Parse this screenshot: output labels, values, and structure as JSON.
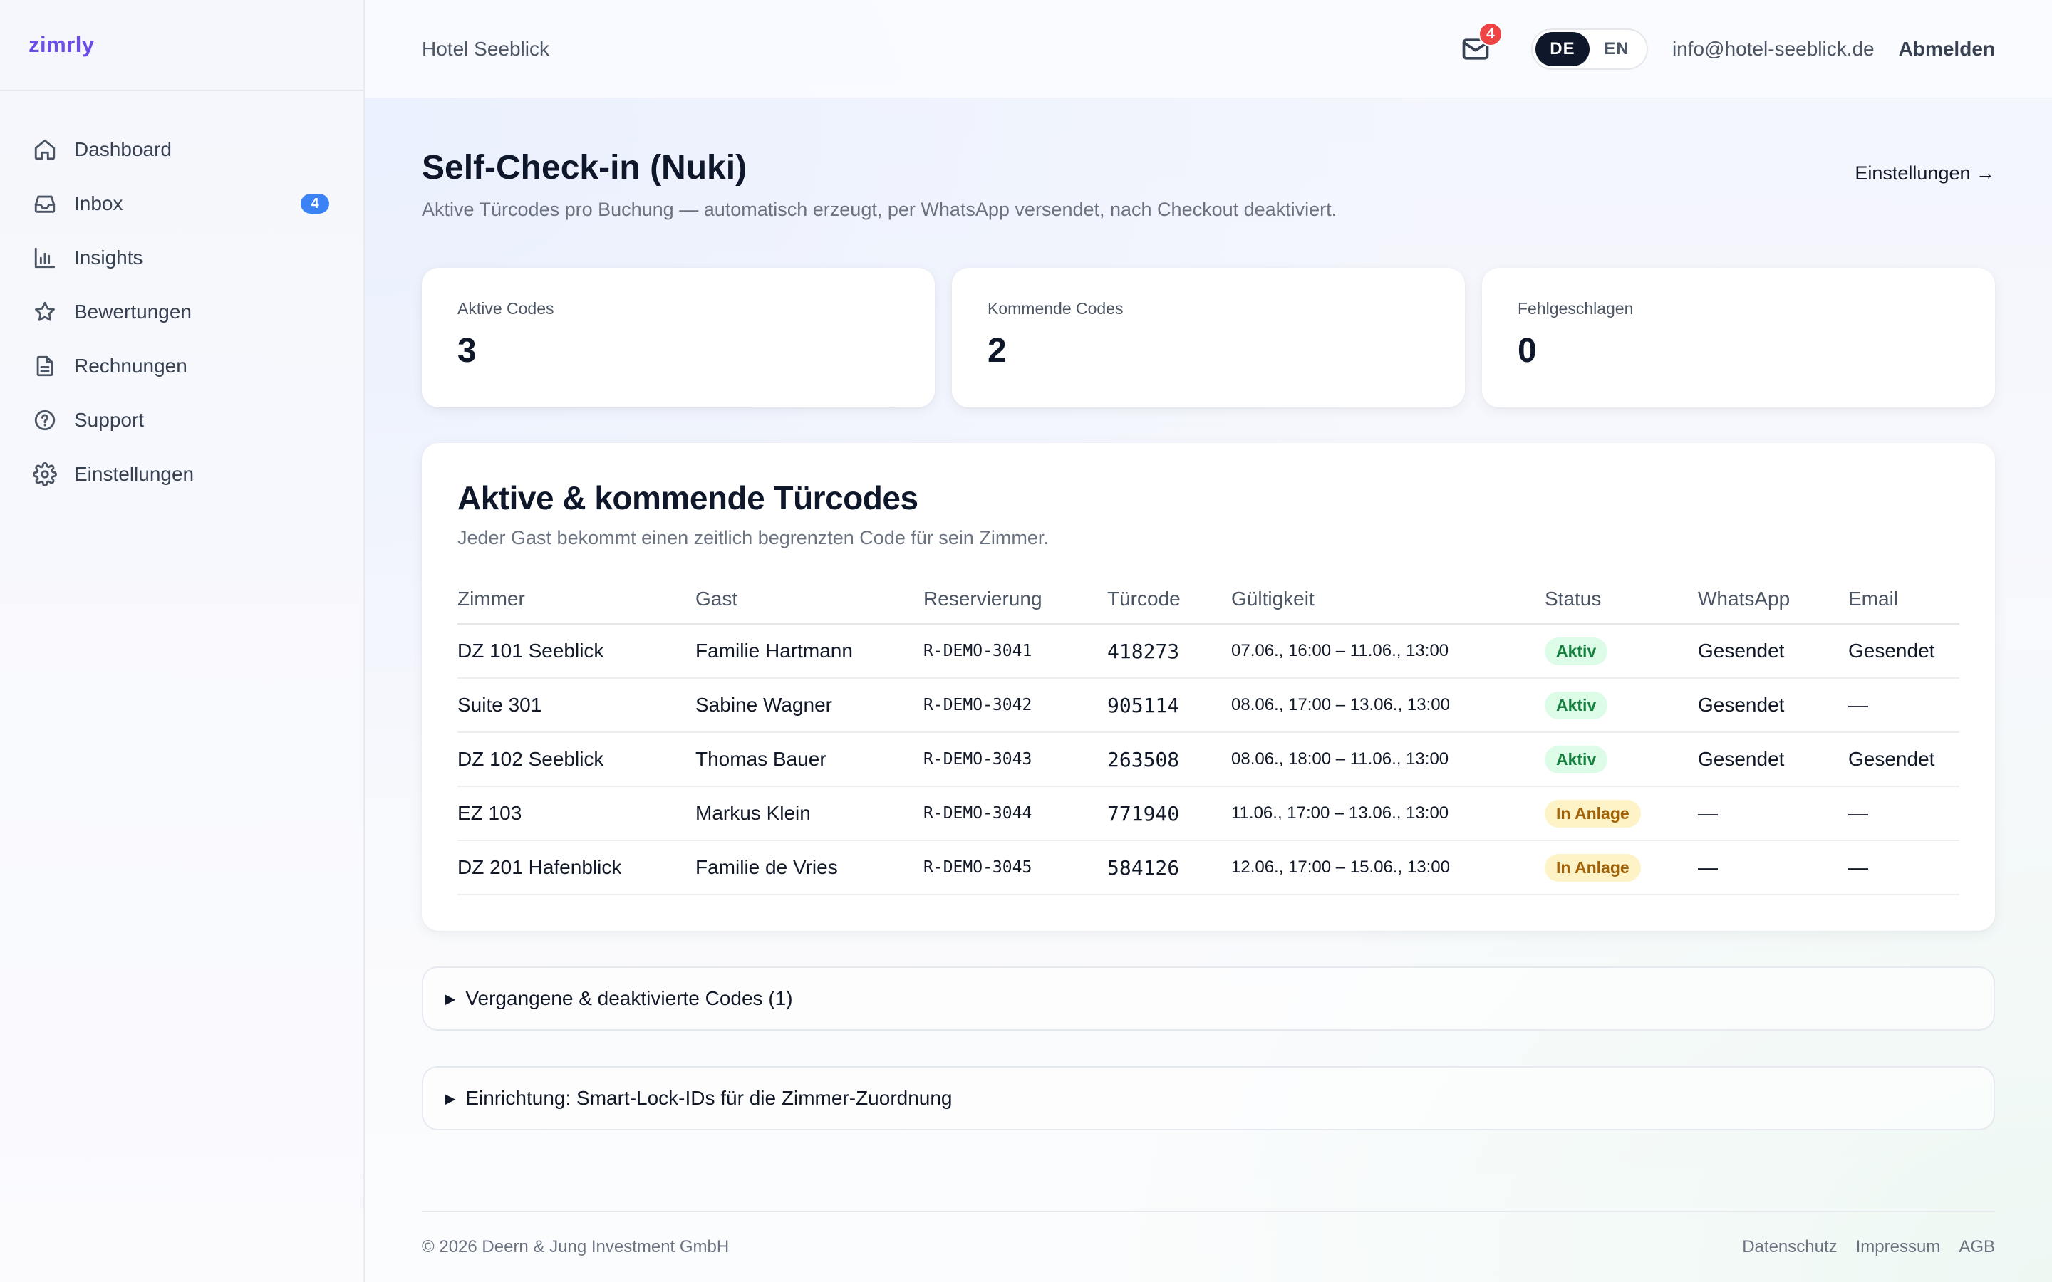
{
  "brand": "zimrly",
  "sidebar": {
    "items": [
      {
        "label": "Dashboard",
        "icon": "home-icon"
      },
      {
        "label": "Inbox",
        "icon": "inbox-icon",
        "badge": "4"
      },
      {
        "label": "Insights",
        "icon": "bar-chart-icon"
      },
      {
        "label": "Bewertungen",
        "icon": "star-icon"
      },
      {
        "label": "Rechnungen",
        "icon": "document-icon"
      },
      {
        "label": "Support",
        "icon": "help-circle-icon"
      },
      {
        "label": "Einstellungen",
        "icon": "gear-icon"
      }
    ]
  },
  "header": {
    "hotel": "Hotel Seeblick",
    "mail_badge": "4",
    "lang": {
      "de": "DE",
      "en": "EN",
      "active": "DE"
    },
    "email": "info@hotel-seeblick.de",
    "logout": "Abmelden"
  },
  "page": {
    "title": "Self-Check-in (Nuki)",
    "subtitle": "Aktive Türcodes pro Buchung — automatisch erzeugt, per WhatsApp versendet, nach Checkout deaktiviert.",
    "settings_link": "Einstellungen →"
  },
  "stats": [
    {
      "label": "Aktive Codes",
      "value": "3"
    },
    {
      "label": "Kommende Codes",
      "value": "2"
    },
    {
      "label": "Fehlgeschlagen",
      "value": "0"
    }
  ],
  "codes_card": {
    "title": "Aktive & kommende Türcodes",
    "subtitle": "Jeder Gast bekommt einen zeitlich begrenzten Code für sein Zimmer.",
    "columns": [
      "Zimmer",
      "Gast",
      "Reservierung",
      "Türcode",
      "Gültigkeit",
      "Status",
      "WhatsApp",
      "Email"
    ],
    "rows": [
      {
        "room": "DZ 101 Seeblick",
        "guest": "Familie Hartmann",
        "res": "R-DEMO-3041",
        "code": "418273",
        "valid": "07.06., 16:00 – 11.06., 13:00",
        "status": "Aktiv",
        "status_type": "active",
        "whatsapp": "Gesendet",
        "email": "Gesendet"
      },
      {
        "room": "Suite 301",
        "guest": "Sabine Wagner",
        "res": "R-DEMO-3042",
        "code": "905114",
        "valid": "08.06., 17:00 – 13.06., 13:00",
        "status": "Aktiv",
        "status_type": "active",
        "whatsapp": "Gesendet",
        "email": "—"
      },
      {
        "room": "DZ 102 Seeblick",
        "guest": "Thomas Bauer",
        "res": "R-DEMO-3043",
        "code": "263508",
        "valid": "08.06., 18:00 – 11.06., 13:00",
        "status": "Aktiv",
        "status_type": "active",
        "whatsapp": "Gesendet",
        "email": "Gesendet"
      },
      {
        "room": "EZ 103",
        "guest": "Markus Klein",
        "res": "R-DEMO-3044",
        "code": "771940",
        "valid": "11.06., 17:00 – 13.06., 13:00",
        "status": "In Anlage",
        "status_type": "pending",
        "whatsapp": "—",
        "email": "—"
      },
      {
        "room": "DZ 201 Hafenblick",
        "guest": "Familie de Vries",
        "res": "R-DEMO-3045",
        "code": "584126",
        "valid": "12.06., 17:00 – 15.06., 13:00",
        "status": "In Anlage",
        "status_type": "pending",
        "whatsapp": "—",
        "email": "—"
      }
    ]
  },
  "collapsibles": [
    {
      "label": "Vergangene & deaktivierte Codes (1)"
    },
    {
      "label": "Einrichtung: Smart-Lock-IDs für die Zimmer-Zuordnung"
    }
  ],
  "footer": {
    "copyright": "© 2026 Deern & Jung Investment GmbH",
    "links": [
      "Datenschutz",
      "Impressum",
      "AGB"
    ]
  }
}
